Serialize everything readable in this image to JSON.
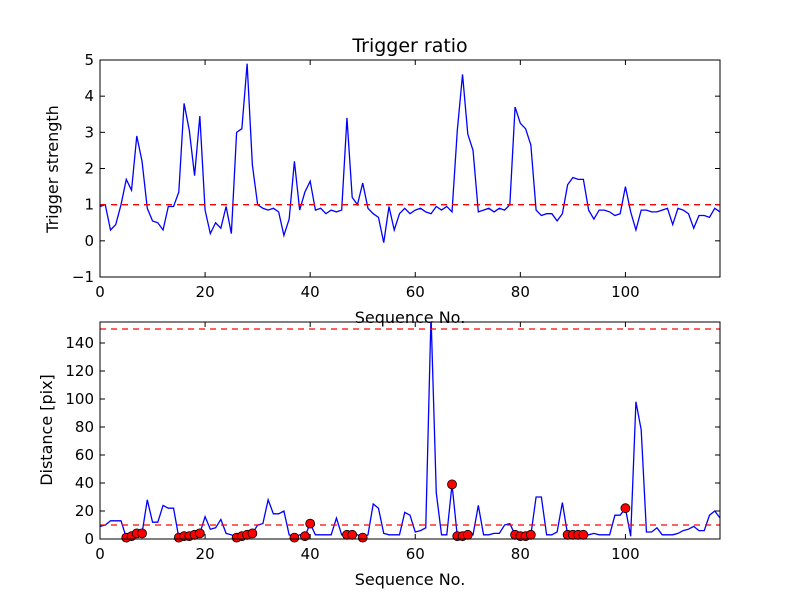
{
  "chart_data": [
    {
      "type": "line",
      "title": "Trigger ratio",
      "xlabel": "Sequence No.",
      "ylabel": "Trigger strength",
      "xlim": [
        0,
        118
      ],
      "ylim": [
        -1,
        5
      ],
      "xticks": [
        0,
        20,
        40,
        60,
        80,
        100
      ],
      "yticks": [
        -1,
        0,
        1,
        2,
        3,
        4,
        5
      ],
      "grid": false,
      "line_color": "#0000ff",
      "series": [
        {
          "x": [
            0,
            1,
            2,
            3,
            4,
            5,
            6,
            7,
            8,
            9,
            10,
            11,
            12,
            13,
            14,
            15,
            16,
            17,
            18,
            19,
            20,
            21,
            22,
            23,
            24,
            25,
            26,
            27,
            28,
            29,
            30,
            31,
            32,
            33,
            34,
            35,
            36,
            37,
            38,
            39,
            40,
            41,
            42,
            43,
            44,
            45,
            46,
            47,
            48,
            49,
            50,
            51,
            52,
            53,
            54,
            55,
            56,
            57,
            58,
            59,
            60,
            61,
            62,
            63,
            64,
            65,
            66,
            67,
            68,
            69,
            70,
            71,
            72,
            73,
            74,
            75,
            76,
            77,
            78,
            79,
            80,
            81,
            82,
            83,
            84,
            85,
            86,
            87,
            88,
            89,
            90,
            91,
            92,
            93,
            94,
            95,
            96,
            97,
            98,
            99,
            100,
            101,
            102,
            103,
            104,
            105,
            106,
            107,
            108,
            109,
            110,
            111,
            112,
            113,
            114,
            115,
            116,
            117,
            118
          ],
          "values": [
            0.95,
            1.0,
            0.3,
            0.45,
            1.0,
            1.7,
            1.4,
            2.9,
            2.2,
            0.9,
            0.55,
            0.5,
            0.3,
            0.95,
            0.95,
            1.35,
            3.8,
            3.05,
            1.8,
            3.45,
            0.85,
            0.2,
            0.5,
            0.35,
            0.95,
            0.2,
            3.0,
            3.1,
            4.9,
            2.1,
            1.0,
            0.9,
            0.85,
            0.9,
            0.8,
            0.15,
            0.6,
            2.2,
            0.85,
            1.35,
            1.65,
            0.85,
            0.9,
            0.75,
            0.85,
            0.8,
            0.85,
            3.4,
            1.2,
            1.0,
            1.6,
            0.9,
            0.75,
            0.65,
            -0.05,
            0.95,
            0.3,
            0.75,
            0.9,
            0.75,
            0.85,
            0.9,
            0.8,
            0.75,
            0.95,
            0.85,
            0.95,
            0.8,
            3.05,
            4.6,
            2.95,
            2.5,
            0.8,
            0.85,
            0.9,
            0.8,
            0.9,
            0.85,
            1.0,
            3.7,
            3.25,
            3.1,
            2.65,
            0.85,
            0.7,
            0.75,
            0.75,
            0.55,
            0.75,
            1.55,
            1.75,
            1.7,
            1.7,
            0.85,
            0.6,
            0.85,
            0.85,
            0.8,
            0.7,
            0.75,
            1.5,
            0.8,
            0.3,
            0.85,
            0.85,
            0.8,
            0.8,
            0.85,
            0.9,
            0.45,
            0.9,
            0.85,
            0.75,
            0.35,
            0.7,
            0.7,
            0.65,
            0.9,
            0.8
          ]
        }
      ],
      "hlines": [
        {
          "y": 1,
          "color": "#ff0000",
          "style": "dashed"
        }
      ]
    },
    {
      "type": "line",
      "title": "",
      "xlabel": "Sequence No.",
      "ylabel": "Distance [pix]",
      "xlim": [
        0,
        118
      ],
      "ylim": [
        0,
        155
      ],
      "xticks": [
        0,
        20,
        40,
        60,
        80,
        100
      ],
      "yticks": [
        0,
        20,
        40,
        60,
        80,
        100,
        120,
        140
      ],
      "grid": false,
      "line_color": "#0000ff",
      "marker_color": "#ff0000",
      "series": [
        {
          "x": [
            0,
            1,
            2,
            3,
            4,
            5,
            6,
            7,
            8,
            9,
            10,
            11,
            12,
            13,
            14,
            15,
            16,
            17,
            18,
            19,
            20,
            21,
            22,
            23,
            24,
            25,
            26,
            27,
            28,
            29,
            30,
            31,
            32,
            33,
            34,
            35,
            36,
            37,
            38,
            39,
            40,
            41,
            42,
            43,
            44,
            45,
            46,
            47,
            48,
            49,
            50,
            51,
            52,
            53,
            54,
            55,
            56,
            57,
            58,
            59,
            60,
            61,
            62,
            63,
            64,
            65,
            66,
            67,
            68,
            69,
            70,
            71,
            72,
            73,
            74,
            75,
            76,
            77,
            78,
            79,
            80,
            81,
            82,
            83,
            84,
            85,
            86,
            87,
            88,
            89,
            90,
            91,
            92,
            93,
            94,
            95,
            96,
            97,
            98,
            99,
            100,
            101,
            102,
            103,
            104,
            105,
            106,
            107,
            108,
            109,
            110,
            111,
            112,
            113,
            114,
            115,
            116,
            117,
            118
          ],
          "values": [
            9,
            10,
            13,
            13,
            13,
            1,
            2,
            4,
            4,
            28,
            12,
            12,
            24,
            22,
            22,
            1,
            2,
            2,
            3,
            4,
            16,
            7,
            8,
            14,
            4,
            3,
            1,
            2,
            3,
            4,
            10,
            11,
            28,
            18,
            18,
            20,
            3,
            1,
            3,
            2,
            11,
            3,
            3,
            3,
            3,
            15,
            3,
            3,
            3,
            3,
            1,
            3,
            25,
            22,
            4,
            3,
            3,
            3,
            19,
            17,
            5,
            6,
            8,
            160,
            33,
            3,
            3,
            39,
            2,
            2,
            3,
            3,
            24,
            3,
            3,
            4,
            4,
            10,
            11,
            3,
            2,
            2,
            3,
            30,
            30,
            3,
            3,
            5,
            26,
            3,
            3,
            3,
            3,
            3,
            4,
            3,
            3,
            3,
            17,
            17,
            22,
            2,
            98,
            78,
            5,
            5,
            8,
            3,
            3,
            3,
            4,
            6,
            7,
            9,
            6,
            6,
            17,
            20,
            15
          ],
          "marker_indices": [
            5,
            6,
            7,
            8,
            15,
            16,
            17,
            18,
            19,
            26,
            27,
            28,
            29,
            37,
            39,
            40,
            47,
            48,
            50,
            67,
            68,
            69,
            70,
            79,
            80,
            81,
            82,
            89,
            90,
            91,
            92,
            100
          ]
        }
      ],
      "hlines": [
        {
          "y": 10,
          "color": "#ff0000",
          "style": "dashed"
        },
        {
          "y": 150,
          "color": "#ff0000",
          "style": "dashed"
        }
      ]
    }
  ]
}
